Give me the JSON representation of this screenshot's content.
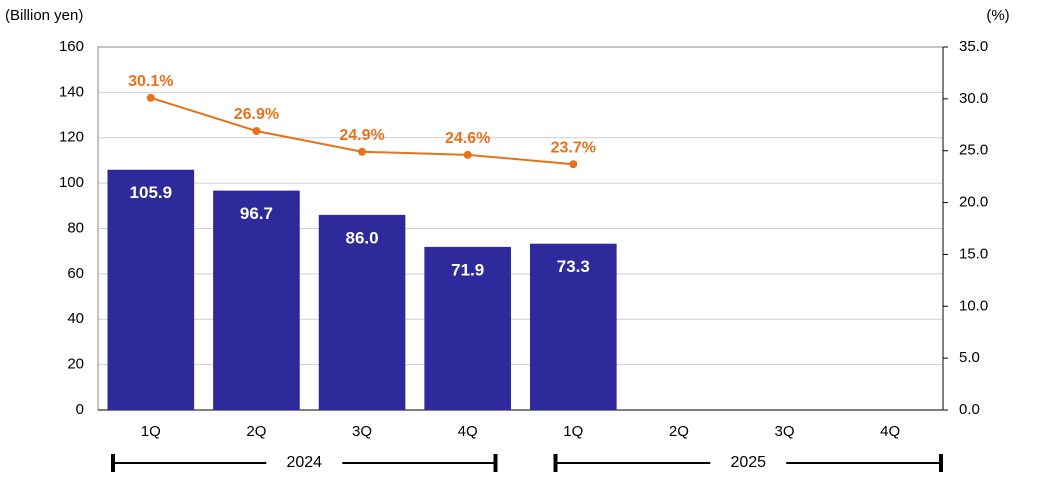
{
  "chart_data": {
    "type": "bar",
    "y_label": "(Billion yen)",
    "y2_label": "(%)",
    "categories": [
      "1Q",
      "2Q",
      "3Q",
      "4Q",
      "1Q",
      "2Q",
      "3Q",
      "4Q"
    ],
    "x_groups": [
      "2024",
      "2025"
    ],
    "series": [
      {
        "type": "bar",
        "color": "#2e2a9c",
        "values": [
          105.9,
          96.7,
          86.0,
          71.9,
          73.3,
          null,
          null,
          null
        ],
        "value_labels": [
          "105.9",
          "96.7",
          "86.0",
          "71.9",
          "73.3",
          null,
          null,
          null
        ]
      },
      {
        "type": "line",
        "axis": "y2",
        "color": "#e8711c",
        "values": [
          30.1,
          26.9,
          24.9,
          24.6,
          23.7,
          null,
          null,
          null
        ],
        "value_labels": [
          "30.1%",
          "26.9%",
          "24.9%",
          "24.6%",
          "23.7%",
          null,
          null,
          null
        ]
      }
    ],
    "ylim": [
      0,
      160
    ],
    "yticks": [
      0,
      20,
      40,
      60,
      80,
      100,
      120,
      140,
      160
    ],
    "y2lim": [
      0,
      35
    ],
    "y2ticks": [
      {
        "value": 0,
        "label": "0.0"
      },
      {
        "value": 5,
        "label": "5.0"
      },
      {
        "value": 10,
        "label": "10.0"
      },
      {
        "value": 15,
        "label": "15.0"
      },
      {
        "value": 20,
        "label": "20.0"
      },
      {
        "value": 25,
        "label": "25.0"
      },
      {
        "value": 30,
        "label": "30.0"
      },
      {
        "value": 35,
        "label": "35.0"
      }
    ],
    "grid": true
  }
}
